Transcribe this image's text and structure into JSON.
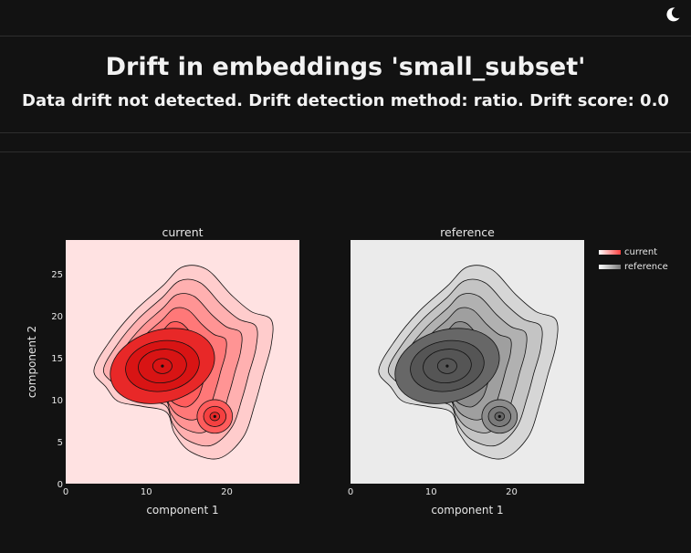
{
  "header": {
    "title": "Drift in embeddings 'small_subset'",
    "subtitle": "Data drift not detected. Drift detection method: ratio. Drift score: 0.0",
    "theme_toggle_icon": "moon-icon"
  },
  "colors": {
    "background": "#121212",
    "current_panel": "#ffe2e2",
    "reference_panel": "#ebebeb",
    "current_scale": [
      "#ffd0d0",
      "#ff4040"
    ],
    "reference_scale": [
      "#e8e8e8",
      "#555555"
    ]
  },
  "chart_data": {
    "type": "contour",
    "panels": [
      {
        "title": "current",
        "xlabel": "component 1",
        "ylabel": "component 2",
        "xlim": [
          0,
          29
        ],
        "ylim": [
          0,
          29
        ],
        "x_ticks": [
          0,
          10,
          20
        ],
        "y_ticks": [
          0,
          5,
          10,
          15,
          20,
          25
        ],
        "peaks": [
          {
            "x": 12,
            "y": 14,
            "level": "highest"
          },
          {
            "x": 18.5,
            "y": 8,
            "level": "high"
          }
        ]
      },
      {
        "title": "reference",
        "xlabel": "component 1",
        "ylabel": "",
        "xlim": [
          0,
          29
        ],
        "ylim": [
          0,
          29
        ],
        "x_ticks": [
          0,
          10,
          20
        ],
        "y_ticks": [],
        "peaks": [
          {
            "x": 12,
            "y": 14,
            "level": "highest"
          },
          {
            "x": 18.5,
            "y": 8,
            "level": "high"
          }
        ]
      }
    ],
    "legend": {
      "placement": "top-right",
      "items": [
        {
          "label": "current",
          "color": "#ff4040"
        },
        {
          "label": "reference",
          "color": "#777777"
        }
      ]
    }
  }
}
